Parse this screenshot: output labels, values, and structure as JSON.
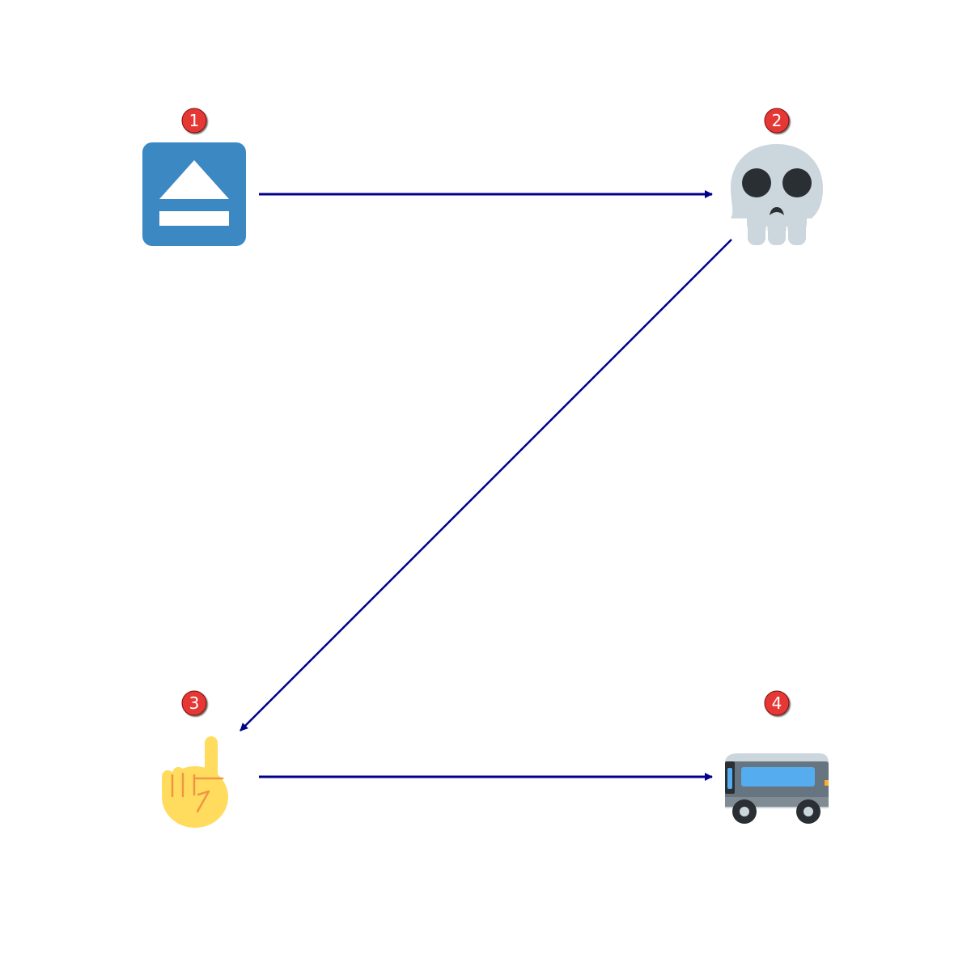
{
  "diagram": {
    "nodes": [
      {
        "id": 1,
        "label": "1",
        "icon": "eject-icon"
      },
      {
        "id": 2,
        "label": "2",
        "icon": "skull-icon"
      },
      {
        "id": 3,
        "label": "3",
        "icon": "index-pointing-up-icon"
      },
      {
        "id": 4,
        "label": "4",
        "icon": "bus-icon"
      }
    ],
    "edges": [
      {
        "from": 1,
        "to": 2
      },
      {
        "from": 2,
        "to": 3
      },
      {
        "from": 3,
        "to": 4
      }
    ],
    "colors": {
      "arrow": "#00008b",
      "badge": "#e53935",
      "badge_border": "#7a1010",
      "badge_text": "#ffffff",
      "eject_bg": "#3b88c3",
      "skull": "#ccd6dd",
      "skull_features": "#292f33",
      "hand": "#ffdc5d",
      "hand_lines": "#ef9645",
      "bus_body": "#66757f",
      "bus_roof": "#ccd6dd",
      "bus_window": "#55acee"
    }
  }
}
